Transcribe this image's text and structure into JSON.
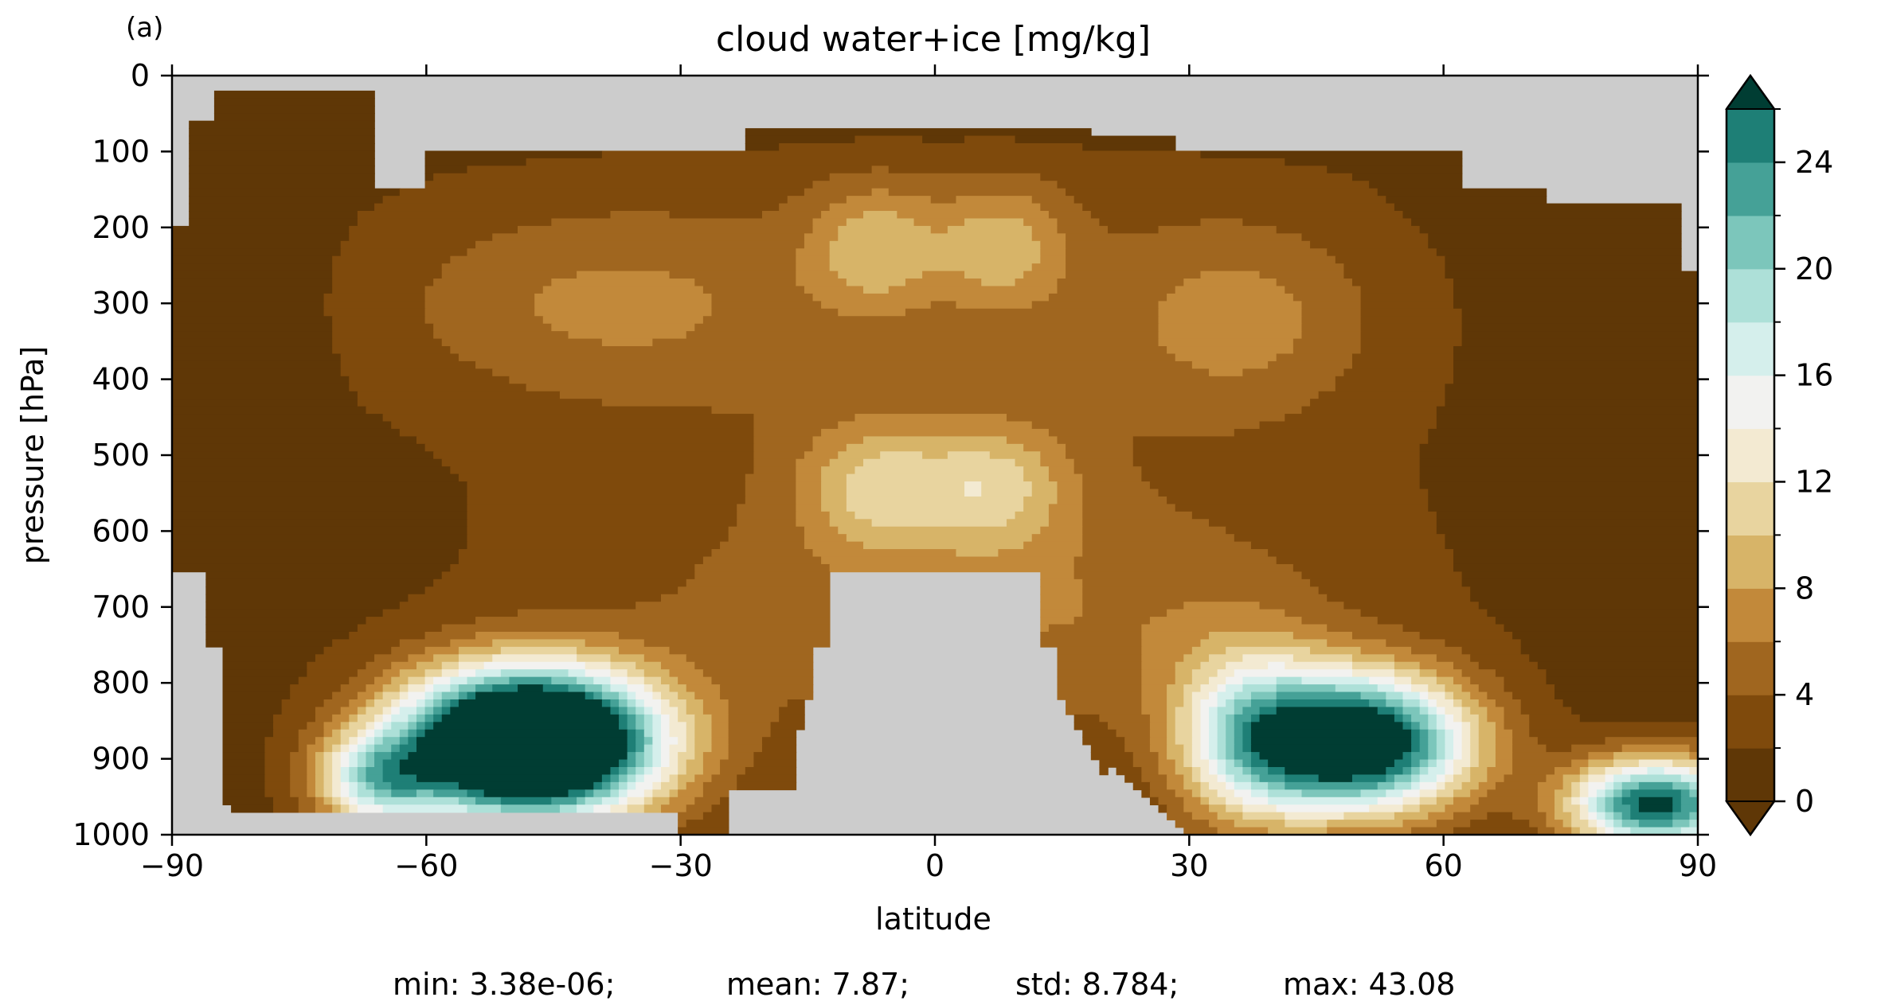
{
  "panel_label": "(a)",
  "stats": {
    "min": "min: 3.38e-06;",
    "mean": "mean: 7.87;",
    "std": "std: 8.784;",
    "max": "max: 43.08"
  },
  "colorbar": {
    "levels": [
      0,
      2,
      4,
      6,
      8,
      10,
      12,
      14,
      16,
      18,
      20,
      22,
      24,
      26
    ],
    "colors": [
      "#5f3706",
      "#7f4a0c",
      "#a0661f",
      "#c2893a",
      "#d7b468",
      "#e8d49f",
      "#f3ead2",
      "#f2f2f0",
      "#d5efec",
      "#ade0d8",
      "#7cc6bb",
      "#45a197",
      "#1e7f76",
      "#045e56",
      "#003d33"
    ],
    "under_color": "#5f3706",
    "over_color": "#003d33",
    "ticks": [
      "0",
      "4",
      "8",
      "12",
      "16",
      "20",
      "24"
    ],
    "tick_values": [
      0,
      4,
      8,
      12,
      16,
      20,
      24
    ]
  },
  "chart_data": {
    "type": "contourf",
    "title": "cloud water+ice [mg/kg]",
    "xlabel": "latitude",
    "ylabel": "pressure [hPa]",
    "xlim": [
      -90,
      90
    ],
    "ylim": [
      1000,
      0
    ],
    "x_ticks": [
      "−90",
      "−60",
      "−30",
      "0",
      "30",
      "60",
      "90"
    ],
    "x_tick_values": [
      -90,
      -60,
      -30,
      0,
      30,
      60,
      90
    ],
    "y_ticks": [
      "0",
      "100",
      "200",
      "300",
      "400",
      "500",
      "600",
      "700",
      "800",
      "900",
      "1000"
    ],
    "y_tick_values": [
      0,
      100,
      200,
      300,
      400,
      500,
      600,
      700,
      800,
      900,
      1000
    ],
    "missing_color": "#cccccc",
    "features": [
      {
        "name": "southern-lower-maximum",
        "lat": -48,
        "p": 880,
        "value": 43
      },
      {
        "name": "northern-lower-maximum",
        "lat": 50,
        "p": 880,
        "value": 30
      },
      {
        "name": "north-pole-surface-maximum",
        "lat": 85,
        "p": 960,
        "value": 26
      },
      {
        "name": "tropical-upper-maximum-south",
        "lat": -6,
        "p": 225,
        "value": 10
      },
      {
        "name": "tropical-upper-maximum-north",
        "lat": 8,
        "p": 225,
        "value": 10
      },
      {
        "name": "tropical-mid-maximum-south",
        "lat": -7,
        "p": 540,
        "value": 10.5
      },
      {
        "name": "tropical-mid-maximum-north",
        "lat": 7,
        "p": 540,
        "value": 10.5
      },
      {
        "name": "southern-upper-band",
        "lat": -40,
        "p": 300,
        "value": 8
      },
      {
        "name": "northern-upper-band",
        "lat": 37,
        "p": 320,
        "value": 8
      }
    ]
  }
}
